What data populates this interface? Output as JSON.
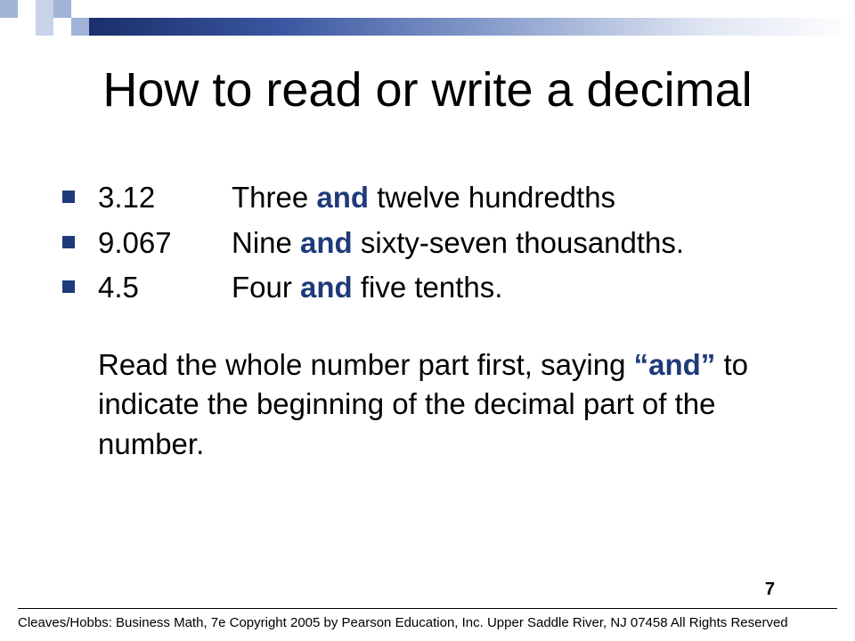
{
  "theme": {
    "square_light": "#c7d3e8",
    "square_dark": "#a1b4d8",
    "accent": "#1f3a7a",
    "text": "#000000",
    "background": "#ffffff",
    "title_fontsize": 54,
    "body_fontsize": 33,
    "footer_fontsize": 15
  },
  "title": "How to read or write a decimal",
  "items": [
    {
      "num": "3.12",
      "pre": "Three ",
      "and": "and",
      "post": " twelve hundredths"
    },
    {
      "num": "9.067",
      "pre": "Nine ",
      "and": "and",
      "post": " sixty-seven thousandths."
    },
    {
      "num": "4.5",
      "pre": "Four ",
      "and": "and",
      "post": " five tenths."
    }
  ],
  "paragraph": {
    "pre": "Read the whole number part first, saying  ",
    "and": "“and”",
    "post": " to indicate the  beginning of the decimal part of the number."
  },
  "page_number": "7",
  "footer": "Cleaves/Hobbs: Business Math, 7e  Copyright 2005 by Pearson Education, Inc. Upper Saddle River, NJ 07458  All Rights Reserved"
}
